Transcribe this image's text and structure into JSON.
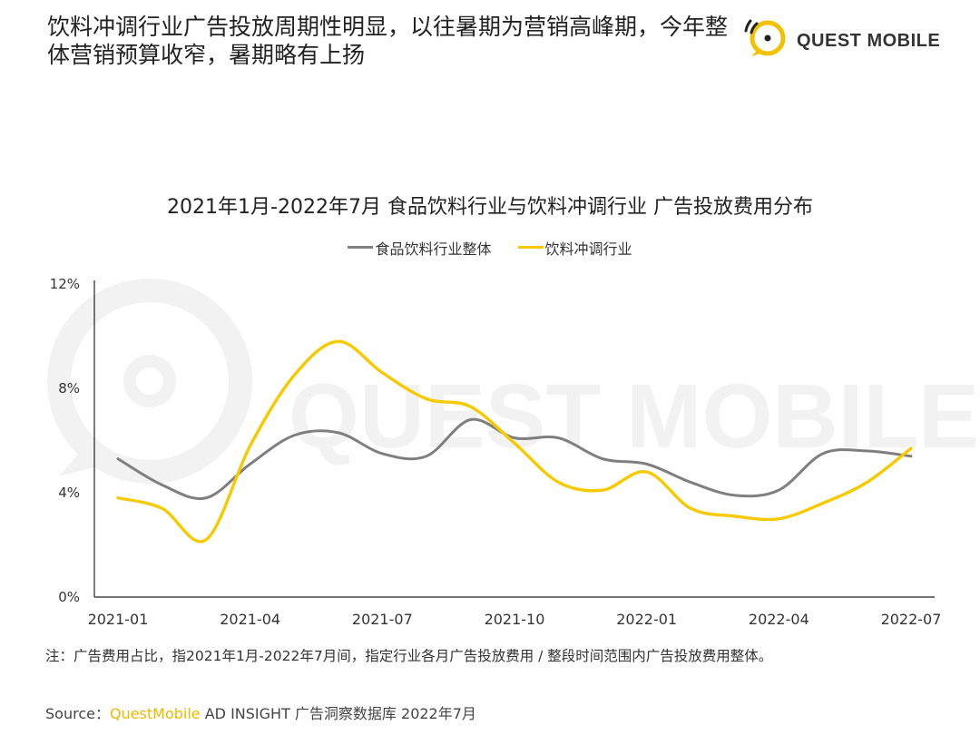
{
  "headline": "饮料冲调行业广告投放周期性明显，以往暑期为营销高峰期，今年整体营销预算收窄，暑期略有上扬",
  "logo": {
    "text": "QUEST MOBILE",
    "icon": "questmobile-logo-icon",
    "color": "#f2c100"
  },
  "watermark": "QUEST MOBILE",
  "note": "注：广告费用占比，指2021年1月-2022年7月间，指定行业各月广告投放费用 / 整段时间范围内广告投放费用整体。",
  "source": {
    "prefix": "Source：",
    "brand": "QuestMobile",
    "rest": " AD INSIGHT 广告洞察数据库 2022年7月"
  },
  "colors": {
    "gray": "#7f7f7f",
    "yellow": "#f7ca00",
    "axis": "#222222",
    "watermark": "#f2f2f2"
  },
  "chart_data": {
    "type": "line",
    "title": "2021年1月-2022年7月 食品饮料行业与饮料冲调行业 广告投放费用分布",
    "categories": [
      "2021-01",
      "2021-02",
      "2021-03",
      "2021-04",
      "2021-05",
      "2021-06",
      "2021-07",
      "2021-08",
      "2021-09",
      "2021-10",
      "2021-11",
      "2021-12",
      "2022-01",
      "2022-02",
      "2022-03",
      "2022-04",
      "2022-05",
      "2022-06",
      "2022-07"
    ],
    "x_tick_labels": [
      "2021-01",
      "2021-04",
      "2021-07",
      "2021-10",
      "2022-01",
      "2022-04",
      "2022-07"
    ],
    "x_tick_indices": [
      0,
      3,
      6,
      9,
      12,
      15,
      18
    ],
    "y_ticks": [
      0,
      4,
      8,
      12
    ],
    "y_tick_labels": [
      "0%",
      "4%",
      "8%",
      "12%"
    ],
    "ylim": [
      0,
      12
    ],
    "xlabel": "",
    "ylabel": "",
    "unit": "%",
    "series": [
      {
        "name": "食品饮料行业整体",
        "color": "#7f7f7f",
        "values": [
          5.3,
          4.3,
          3.8,
          5.1,
          6.2,
          6.3,
          5.5,
          5.4,
          6.8,
          6.1,
          6.1,
          5.3,
          5.1,
          4.4,
          3.9,
          4.1,
          5.5,
          5.6,
          5.4
        ]
      },
      {
        "name": "饮料冲调行业",
        "color": "#f7ca00",
        "values": [
          3.8,
          3.4,
          2.2,
          5.8,
          8.5,
          9.8,
          8.6,
          7.6,
          7.3,
          5.9,
          4.4,
          4.1,
          4.8,
          3.4,
          3.1,
          3.0,
          3.6,
          4.4,
          5.7
        ]
      }
    ]
  }
}
